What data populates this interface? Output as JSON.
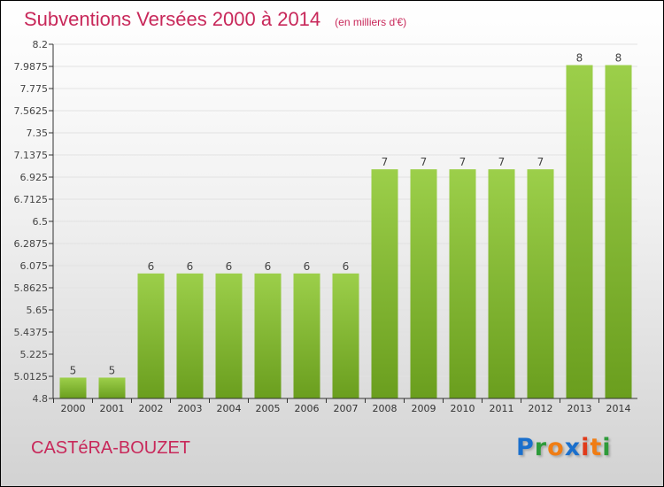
{
  "title": "Subventions Versées 2000 à 2014",
  "unit": "(en milliers d'€)",
  "commune": "CASTéRA-BOUZET",
  "logo": {
    "letters": [
      "P",
      "r",
      "o",
      "x",
      "i",
      "t",
      "i"
    ],
    "colors": [
      "#1a6fcc",
      "#2e9b3a",
      "#f07d14",
      "#1a6fcc",
      "#e03a1a",
      "#f07d14",
      "#2e9b3a"
    ]
  },
  "colors": {
    "bar_top": "#9ccf4a",
    "bar_bottom": "#6a9e1e",
    "title": "#c8285a"
  },
  "chart_data": {
    "type": "bar",
    "title": "Subventions Versées 2000 à 2014",
    "xlabel": "",
    "ylabel": "(en milliers d'€)",
    "categories": [
      "2000",
      "2001",
      "2002",
      "2003",
      "2004",
      "2005",
      "2006",
      "2007",
      "2008",
      "2009",
      "2010",
      "2011",
      "2012",
      "2013",
      "2014"
    ],
    "values": [
      5,
      5,
      6,
      6,
      6,
      6,
      6,
      6,
      7,
      7,
      7,
      7,
      7,
      8,
      8
    ],
    "ylim": [
      4.8,
      8.2
    ],
    "yticks": [
      "4.8",
      "5.0125",
      "5.225",
      "5.4375",
      "5.65",
      "5.8625",
      "6.075",
      "6.2875",
      "6.5",
      "6.7125",
      "6.925",
      "7.1375",
      "7.35",
      "7.5625",
      "7.775",
      "7.9875",
      "8.2"
    ],
    "grid": true
  }
}
